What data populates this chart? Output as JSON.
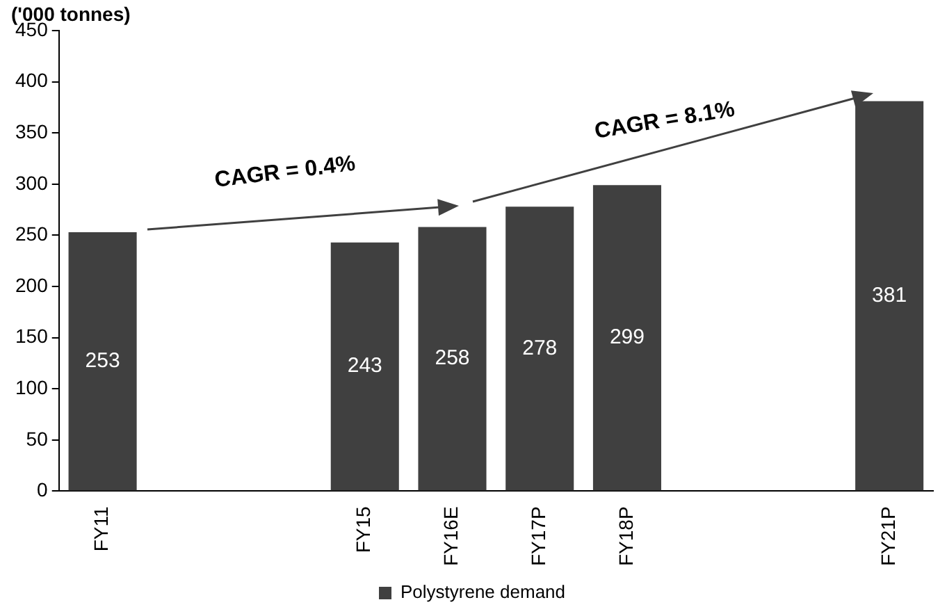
{
  "chart_data": {
    "type": "bar",
    "ylabel": "('000 tonnes)",
    "categories": [
      "FY11",
      null,
      null,
      "FY15",
      "FY16E",
      "FY17P",
      "FY18P",
      null,
      null,
      "FY21P"
    ],
    "series": [
      {
        "name": "Polystyrene demand",
        "color": "#404040",
        "values": [
          253,
          null,
          null,
          243,
          258,
          278,
          299,
          null,
          null,
          381
        ]
      }
    ],
    "ylim": [
      0,
      450
    ],
    "yticks": [
      0,
      50,
      100,
      150,
      200,
      250,
      300,
      350,
      400,
      450
    ],
    "data_labels": true,
    "grid": false,
    "legend": "bottom",
    "annotations": [
      "CAGR = 0.4%",
      "CAGR = 8.1%"
    ]
  }
}
